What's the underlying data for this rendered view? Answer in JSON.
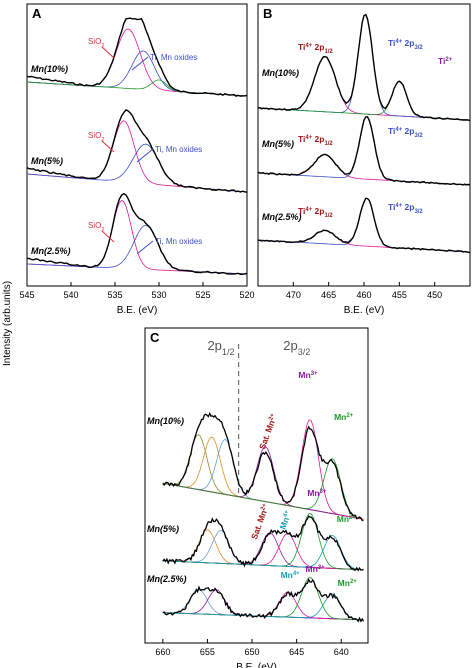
{
  "figure": {
    "shared_ylabel": "Intensity (arb.units)",
    "colors": {
      "data": "#000000",
      "magenta": "#e0189c",
      "blue": "#3a4fc8",
      "green": "#1a9a2a",
      "orange": "#e08a2a",
      "olive": "#8a8a2a",
      "purple": "#8a1aa0",
      "baseline_red": "#e0303a",
      "dark_red": "#a01818",
      "teal": "#18a0b8",
      "light_blue": "#6aa0d8"
    }
  },
  "chart_data": [
    {
      "panel": "A",
      "type": "line",
      "xlabel": "B.E. (eV)",
      "xlim": [
        545,
        520
      ],
      "xticks": [
        545,
        540,
        535,
        530,
        525,
        520
      ],
      "spectra": [
        {
          "label": "Mn(10%)",
          "peaks": [
            {
              "name": "SiO2",
              "center": 533.5,
              "fwhm": 3.2
            },
            {
              "name": "Ti, Mn oxides",
              "center": 531.8,
              "fwhm": 3.0
            },
            {
              "center": 530.0,
              "fwhm": 2.0
            }
          ]
        },
        {
          "label": "Mn(5%)",
          "peaks": [
            {
              "name": "SiO2",
              "center": 534.0,
              "fwhm": 2.8
            },
            {
              "name": "Ti, Mn oxides",
              "center": 531.5,
              "fwhm": 3.4
            }
          ]
        },
        {
          "label": "Mn(2.5%)",
          "peaks": [
            {
              "name": "SiO2",
              "center": 534.2,
              "fwhm": 2.5
            },
            {
              "name": "Ti, Mn oxides",
              "center": 531.5,
              "fwhm": 3.2
            }
          ]
        }
      ],
      "annotations": [
        {
          "spectrum": 0,
          "text": "SiO",
          "sub": "2",
          "color": "#e0303a"
        },
        {
          "spectrum": 0,
          "text": "Ti, Mn oxides",
          "sub": "",
          "color": "#3a4fc8"
        },
        {
          "spectrum": 1,
          "text": "SiO",
          "sub": "2",
          "color": "#e0303a"
        },
        {
          "spectrum": 1,
          "text": "Ti, Mn oxides",
          "sub": "",
          "color": "#3a4fc8"
        },
        {
          "spectrum": 2,
          "text": "SiO",
          "sub": "2",
          "color": "#e0303a"
        },
        {
          "spectrum": 2,
          "text": "Ti, Mn oxides",
          "sub": "",
          "color": "#3a4fc8"
        }
      ]
    },
    {
      "panel": "B",
      "type": "line",
      "xlabel": "B.E. (eV)",
      "xlim": [
        475,
        445
      ],
      "xticks": [
        470,
        465,
        460,
        455,
        450
      ],
      "spectra": [
        {
          "label": "Mn(10%)",
          "peaks": [
            {
              "name": "Ti4+ 2p1/2",
              "center": 465.5
            },
            {
              "name": "Ti4+ 2p3/2",
              "center": 459.8
            },
            {
              "name": "Ti2+",
              "center": 455.0
            }
          ]
        },
        {
          "label": "Mn(5%)",
          "peaks": [
            {
              "name": "Ti4+ 2p1/2",
              "center": 465.5
            },
            {
              "name": "Ti4+ 2p3/2",
              "center": 459.6
            }
          ]
        },
        {
          "label": "Mn(2.5%)",
          "peaks": [
            {
              "name": "Ti4+ 2p1/2",
              "center": 465.5
            },
            {
              "name": "Ti4+ 2p3/2",
              "center": 459.6
            }
          ]
        }
      ],
      "annotations": [
        {
          "spectrum": 0,
          "text": "Ti",
          "sup": "4+",
          "rest": " 2p",
          "sub": "1/2",
          "color": "#a01818"
        },
        {
          "spectrum": 0,
          "text": "Ti",
          "sup": "4+",
          "rest": " 2p",
          "sub": "3/2",
          "color": "#3a4fc8"
        },
        {
          "spectrum": 0,
          "text": "Ti",
          "sup": "2+",
          "rest": "",
          "sub": "",
          "color": "#8a1aa0"
        },
        {
          "spectrum": 1,
          "text": "Ti",
          "sup": "4+",
          "rest": " 2p",
          "sub": "1/2",
          "color": "#a01818"
        },
        {
          "spectrum": 1,
          "text": "Ti",
          "sup": "4+",
          "rest": " 2p",
          "sub": "3/2",
          "color": "#3a4fc8"
        },
        {
          "spectrum": 2,
          "text": "Ti",
          "sup": "4+",
          "rest": " 2p",
          "sub": "1/2",
          "color": "#a01818"
        },
        {
          "spectrum": 2,
          "text": "Ti",
          "sup": "4+",
          "rest": " 2p",
          "sub": "3/2",
          "color": "#3a4fc8"
        }
      ]
    },
    {
      "panel": "C",
      "type": "line",
      "xlabel": "B.E. (eV)",
      "xlim": [
        662,
        637
      ],
      "xticks": [
        660,
        655,
        650,
        645,
        640
      ],
      "region_labels": [
        {
          "text": "2p",
          "sub": "1/2"
        },
        {
          "text": "2p",
          "sub": "3/2"
        }
      ],
      "divider_be": 651.5,
      "spectra": [
        {
          "label": "Mn(10%)",
          "peaks": [
            {
              "center": 656
            },
            {
              "center": 654.5
            },
            {
              "center": 653
            },
            {
              "name": "Sat. Mn2+",
              "center": 648.5
            },
            {
              "name": "Mn3+",
              "center": 643.5
            },
            {
              "name": "Mn2+",
              "center": 641
            }
          ]
        },
        {
          "label": "Mn(5%)",
          "peaks": [
            {
              "center": 655
            },
            {
              "center": 653.5
            },
            {
              "name": "Sat. Mn2+",
              "center": 648
            },
            {
              "name": "Mn4+",
              "center": 646
            },
            {
              "name": "Mn3+",
              "center": 643.5
            },
            {
              "name": "Mn2+",
              "center": 641
            }
          ]
        },
        {
          "label": "Mn(2.5%)",
          "peaks": [
            {
              "center": 656
            },
            {
              "center": 654
            },
            {
              "name": "Mn4+",
              "center": 646
            },
            {
              "name": "Mn3+",
              "center": 643.5
            },
            {
              "name": "Mn2+",
              "center": 641
            }
          ]
        }
      ],
      "annotations": [
        {
          "spectrum": 0,
          "text": "Sat. Mn",
          "sup": "2+",
          "color": "#a01818"
        },
        {
          "spectrum": 0,
          "text": "Mn",
          "sup": "3+",
          "color": "#8a1aa0"
        },
        {
          "spectrum": 0,
          "text": "Mn",
          "sup": "2+",
          "color": "#1a9a2a"
        },
        {
          "spectrum": 1,
          "text": "Sat. Mn",
          "sup": "2+",
          "color": "#a01818"
        },
        {
          "spectrum": 1,
          "text": "Mn",
          "sup": "4+",
          "color": "#18a0b8"
        },
        {
          "spectrum": 1,
          "text": "Mn",
          "sup": "3+",
          "color": "#8a1aa0"
        },
        {
          "spectrum": 1,
          "text": "Mn",
          "sup": "2+",
          "color": "#1a9a2a"
        },
        {
          "spectrum": 2,
          "text": "Mn",
          "sup": "4+",
          "color": "#18a0b8"
        },
        {
          "spectrum": 2,
          "text": "Mn",
          "sup": "3+",
          "color": "#8a1aa0"
        },
        {
          "spectrum": 2,
          "text": "Mn",
          "sup": "2+",
          "color": "#1a9a2a"
        }
      ]
    }
  ]
}
